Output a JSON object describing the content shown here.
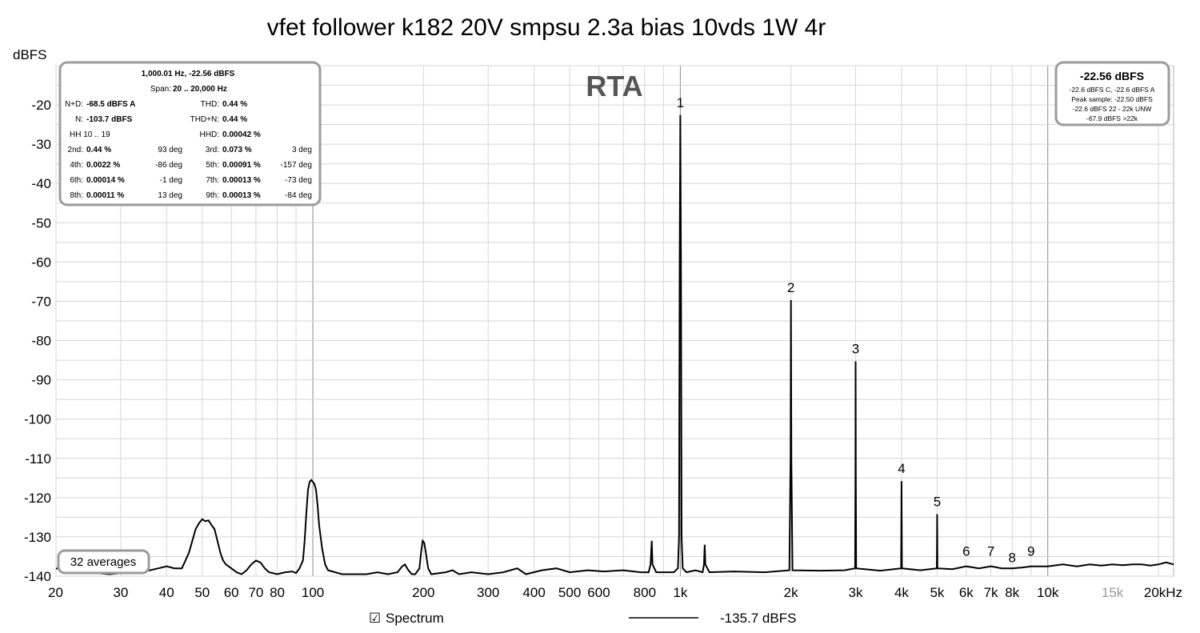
{
  "chart_data": {
    "type": "line",
    "title": "vfet follower k182 20V smpsu 2.3a bias 10vds 1W 4r",
    "ylabel": "dBFS",
    "xlabel_unit": "kHz",
    "x_scale": "log",
    "xlim": [
      20,
      22000
    ],
    "ylim": [
      -140,
      -10
    ],
    "grid": true,
    "watermark": "RTA",
    "x_ticks": [
      {
        "v": 20,
        "label": "20"
      },
      {
        "v": 30,
        "label": "30"
      },
      {
        "v": 40,
        "label": "40"
      },
      {
        "v": 50,
        "label": "50"
      },
      {
        "v": 60,
        "label": "60"
      },
      {
        "v": 70,
        "label": "70"
      },
      {
        "v": 80,
        "label": "80"
      },
      {
        "v": 100,
        "label": "100"
      },
      {
        "v": 200,
        "label": "200"
      },
      {
        "v": 300,
        "label": "300"
      },
      {
        "v": 400,
        "label": "400"
      },
      {
        "v": 500,
        "label": "500"
      },
      {
        "v": 600,
        "label": "600"
      },
      {
        "v": 800,
        "label": "800"
      },
      {
        "v": 1000,
        "label": "1k"
      },
      {
        "v": 2000,
        "label": "2k"
      },
      {
        "v": 3000,
        "label": "3k"
      },
      {
        "v": 4000,
        "label": "4k"
      },
      {
        "v": 5000,
        "label": "5k"
      },
      {
        "v": 6000,
        "label": "6k"
      },
      {
        "v": 7000,
        "label": "7k"
      },
      {
        "v": 8000,
        "label": "8k"
      },
      {
        "v": 10000,
        "label": "10k"
      },
      {
        "v": 15000,
        "label": "15k",
        "gray": true
      },
      {
        "v": 20000,
        "label": "20kHz"
      }
    ],
    "y_ticks": [
      -20,
      -30,
      -40,
      -50,
      -60,
      -70,
      -80,
      -90,
      -100,
      -110,
      -120,
      -130,
      -140
    ],
    "harmonic_markers": [
      {
        "label": "1",
        "f": 1000,
        "db": -22.6
      },
      {
        "label": "2",
        "f": 2000,
        "db": -69.7
      },
      {
        "label": "3",
        "f": 3000,
        "db": -85.3
      },
      {
        "label": "4",
        "f": 4000,
        "db": -115.8
      },
      {
        "label": "5",
        "f": 5000,
        "db": -124.2
      },
      {
        "label": "6",
        "f": 6000,
        "db": -136.8
      },
      {
        "label": "7",
        "f": 7000,
        "db": -136.8
      },
      {
        "label": "8",
        "f": 8000,
        "db": -138.5
      },
      {
        "label": "9",
        "f": 9000,
        "db": -136.8
      }
    ],
    "series": [
      {
        "points": [
          [
            20,
            -138
          ],
          [
            24,
            -139
          ],
          [
            28,
            -139.5
          ],
          [
            32,
            -139
          ],
          [
            36,
            -138.5
          ],
          [
            38,
            -138
          ],
          [
            40,
            -137.5
          ],
          [
            42,
            -138
          ],
          [
            44,
            -138
          ],
          [
            45,
            -136
          ],
          [
            46,
            -134
          ],
          [
            47,
            -131
          ],
          [
            48,
            -128
          ],
          [
            49,
            -126.5
          ],
          [
            50,
            -125.5
          ],
          [
            51,
            -126
          ],
          [
            52,
            -125.8
          ],
          [
            53,
            -127
          ],
          [
            54,
            -128
          ],
          [
            55,
            -131
          ],
          [
            56,
            -134
          ],
          [
            57,
            -136
          ],
          [
            58,
            -137
          ],
          [
            60,
            -138
          ],
          [
            62,
            -139
          ],
          [
            64,
            -139.5
          ],
          [
            66,
            -138.5
          ],
          [
            68,
            -137
          ],
          [
            70,
            -136
          ],
          [
            72,
            -136.5
          ],
          [
            74,
            -138
          ],
          [
            76,
            -139
          ],
          [
            80,
            -139.5
          ],
          [
            84,
            -139
          ],
          [
            88,
            -138.8
          ],
          [
            90,
            -139.2
          ],
          [
            92,
            -138
          ],
          [
            94,
            -136
          ],
          [
            95,
            -131
          ],
          [
            96,
            -124
          ],
          [
            97,
            -118
          ],
          [
            98,
            -116
          ],
          [
            99,
            -115.5
          ],
          [
            100,
            -116
          ],
          [
            101,
            -116.5
          ],
          [
            102,
            -118
          ],
          [
            103,
            -122
          ],
          [
            104,
            -127
          ],
          [
            106,
            -133
          ],
          [
            108,
            -137
          ],
          [
            110,
            -138.5
          ],
          [
            120,
            -139.5
          ],
          [
            140,
            -139.5
          ],
          [
            150,
            -139
          ],
          [
            160,
            -139.5
          ],
          [
            170,
            -139
          ],
          [
            175,
            -137.5
          ],
          [
            178,
            -137
          ],
          [
            182,
            -138.5
          ],
          [
            186,
            -139.5
          ],
          [
            190,
            -139.5
          ],
          [
            195,
            -138
          ],
          [
            197,
            -134
          ],
          [
            199,
            -131
          ],
          [
            201,
            -131.5
          ],
          [
            203,
            -134
          ],
          [
            206,
            -138
          ],
          [
            210,
            -139.5
          ],
          [
            230,
            -139
          ],
          [
            240,
            -138.5
          ],
          [
            250,
            -139.5
          ],
          [
            270,
            -139
          ],
          [
            300,
            -139.5
          ],
          [
            330,
            -139
          ],
          [
            360,
            -138
          ],
          [
            380,
            -139.5
          ],
          [
            420,
            -138.5
          ],
          [
            460,
            -138
          ],
          [
            500,
            -139
          ],
          [
            560,
            -138.5
          ],
          [
            620,
            -138.8
          ],
          [
            700,
            -138.5
          ],
          [
            780,
            -139
          ],
          [
            820,
            -139
          ],
          [
            830,
            -137
          ],
          [
            836,
            -131
          ],
          [
            840,
            -137
          ],
          [
            860,
            -139
          ],
          [
            900,
            -139
          ],
          [
            960,
            -139
          ],
          [
            985,
            -138
          ],
          [
            992,
            -130
          ],
          [
            996,
            -60
          ],
          [
            1000,
            -22.6
          ],
          [
            1004,
            -60
          ],
          [
            1008,
            -130
          ],
          [
            1015,
            -138
          ],
          [
            1040,
            -139
          ],
          [
            1100,
            -138.5
          ],
          [
            1150,
            -139
          ],
          [
            1160,
            -137
          ],
          [
            1165,
            -132
          ],
          [
            1170,
            -137
          ],
          [
            1200,
            -139
          ],
          [
            1400,
            -138.8
          ],
          [
            1700,
            -139
          ],
          [
            1980,
            -138.5
          ],
          [
            1995,
            -110
          ],
          [
            2000,
            -69.7
          ],
          [
            2005,
            -110
          ],
          [
            2020,
            -138.5
          ],
          [
            2400,
            -138.6
          ],
          [
            2800,
            -138.5
          ],
          [
            2990,
            -138
          ],
          [
            2996,
            -115
          ],
          [
            3000,
            -85.3
          ],
          [
            3004,
            -115
          ],
          [
            3010,
            -138
          ],
          [
            3500,
            -138.6
          ],
          [
            3990,
            -138
          ],
          [
            3996,
            -125
          ],
          [
            4000,
            -115.8
          ],
          [
            4004,
            -125
          ],
          [
            4010,
            -138
          ],
          [
            4500,
            -138.5
          ],
          [
            4990,
            -138
          ],
          [
            4996,
            -130
          ],
          [
            5000,
            -124.2
          ],
          [
            5004,
            -130
          ],
          [
            5010,
            -138
          ],
          [
            5500,
            -138.2
          ],
          [
            6000,
            -137.5
          ],
          [
            6500,
            -138
          ],
          [
            7000,
            -137.5
          ],
          [
            7500,
            -138
          ],
          [
            8000,
            -138
          ],
          [
            8500,
            -137.8
          ],
          [
            9000,
            -137.5
          ],
          [
            10000,
            -137.5
          ],
          [
            11000,
            -137
          ],
          [
            12000,
            -137.5
          ],
          [
            13000,
            -137
          ],
          [
            14000,
            -137.3
          ],
          [
            15000,
            -137
          ],
          [
            16000,
            -137.2
          ],
          [
            17000,
            -137
          ],
          [
            18000,
            -137
          ],
          [
            19000,
            -137.3
          ],
          [
            20000,
            -137
          ],
          [
            21000,
            -136.5
          ],
          [
            22000,
            -137
          ]
        ]
      }
    ]
  },
  "stats_left": {
    "header1": "1,000.01 Hz, -22.56 dBFS",
    "header2_label": "Span:",
    "header2_value": "20 .. 20,000 Hz",
    "nd_label": "N+D:",
    "nd_value": "-68.5 dBFS A",
    "thd_label": "THD:",
    "thd_value": "0.44 %",
    "n_label": "N:",
    "n_value": "-103.7 dBFS",
    "thdn_label": "THD+N:",
    "thdn_value": "0.44 %",
    "hh_label": "HH 10 .. 19",
    "hhd_label": "HHD:",
    "hhd_value": "0.00042 %",
    "harmonics": [
      {
        "a_label": "2nd:",
        "a_value": "0.44 %",
        "a_deg": "93 deg",
        "b_label": "3rd:",
        "b_value": "0.073 %",
        "b_deg": "3 deg"
      },
      {
        "a_label": "4th:",
        "a_value": "0.0022 %",
        "a_deg": "-86 deg",
        "b_label": "5th:",
        "b_value": "0.00091 %",
        "b_deg": "-157 deg"
      },
      {
        "a_label": "6th:",
        "a_value": "0.00014 %",
        "a_deg": "-1 deg",
        "b_label": "7th:",
        "b_value": "0.00013 %",
        "b_deg": "-73 deg"
      },
      {
        "a_label": "8th:",
        "a_value": "0.00011 %",
        "a_deg": "13 deg",
        "b_label": "9th:",
        "b_value": "0.00013 %",
        "b_deg": "-84 deg"
      }
    ]
  },
  "stats_right": {
    "main": "-22.56 dBFS",
    "line1": "-22.6 dBFS C, -22.6 dBFS A",
    "line2": "Peak sample: -22.50 dBFS",
    "line3": "-22.6 dBFS 22 - 22k UNW",
    "line4": "-67.9 dBFS >22k"
  },
  "averages": "32 averages",
  "legend": {
    "checkbox_glyph": "☑",
    "label": "Spectrum",
    "value": "-135.7 dBFS"
  }
}
